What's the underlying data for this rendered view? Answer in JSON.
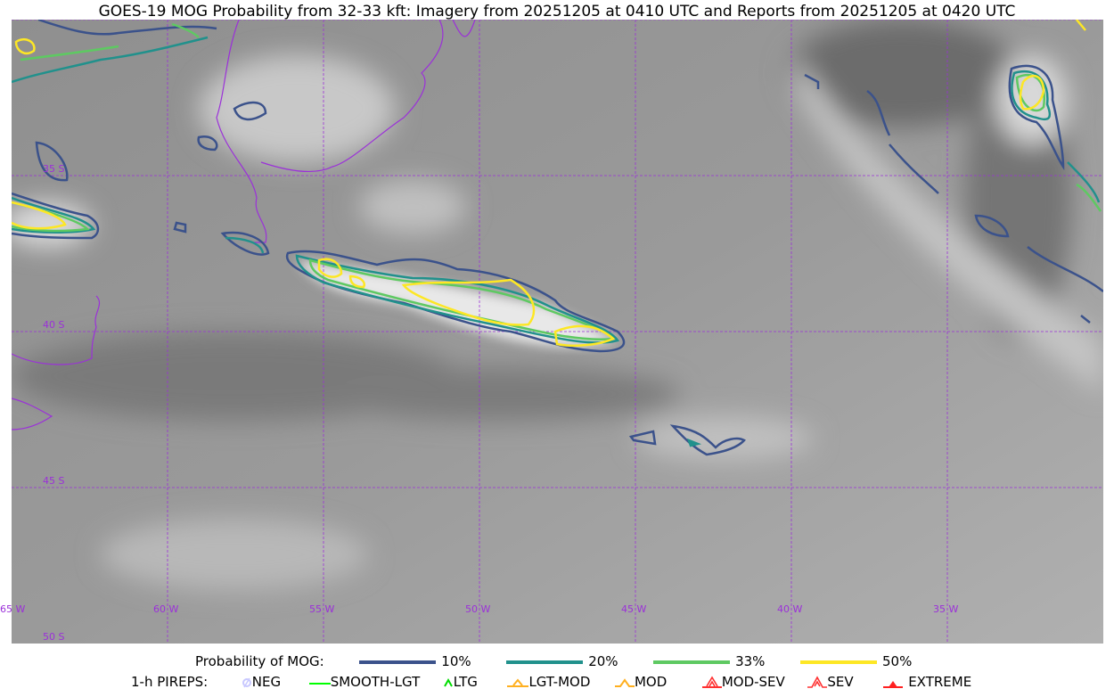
{
  "title": "GOES-19 MOG Probability from 32-33 kft: Imagery from 20251205 at 0410 UTC and Reports from 20251205 at 0420 UTC",
  "map": {
    "longitude_labels": [
      "65 W",
      "60 W",
      "55 W",
      "50 W",
      "45 W",
      "40 W",
      "35 W"
    ],
    "latitude_labels": [
      "35 S",
      "40 S",
      "45 S",
      "50 S"
    ],
    "gridline_color": "#9b30d9",
    "coastline_color": "#9b30d9"
  },
  "legend": {
    "probability_label": "Probability of MOG:",
    "levels": [
      {
        "label": "10%",
        "color": "#3b528b"
      },
      {
        "label": "20%",
        "color": "#21918c"
      },
      {
        "label": "33%",
        "color": "#5ec962"
      },
      {
        "label": "50%",
        "color": "#fde725"
      }
    ],
    "pireps_label": "1-h PIREPS:",
    "pireps": [
      {
        "label": "NEG",
        "color": "#c8c8ff",
        "icon": "neg-icon"
      },
      {
        "label": "SMOOTH-LGT",
        "color": "#00ff00",
        "icon": "smooth-lgt-icon"
      },
      {
        "label": "LTG",
        "color": "#00dd00",
        "icon": "ltg-icon"
      },
      {
        "label": "LGT-MOD",
        "color": "#ffb020",
        "icon": "lgt-mod-icon"
      },
      {
        "label": "MOD",
        "color": "#ffb020",
        "icon": "mod-icon"
      },
      {
        "label": "MOD-SEV",
        "color": "#ff3030",
        "icon": "mod-sev-icon"
      },
      {
        "label": "SEV",
        "color": "#ff3030",
        "icon": "sev-icon"
      },
      {
        "label": "EXTREME",
        "color": "#ff2020",
        "icon": "extreme-icon"
      }
    ]
  }
}
